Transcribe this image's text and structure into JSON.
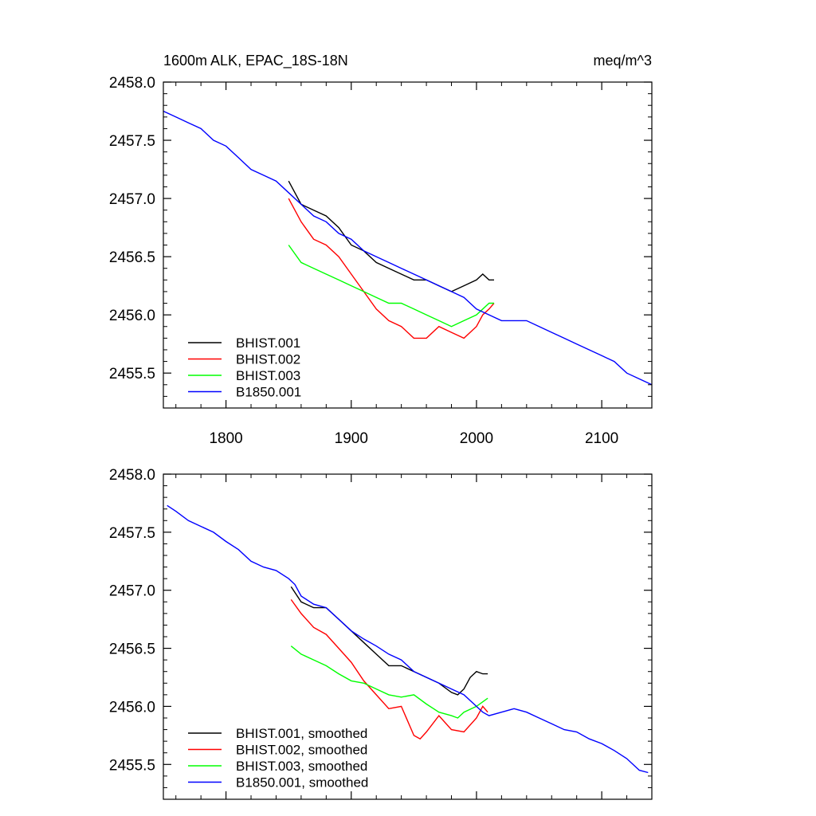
{
  "chart_data": [
    {
      "type": "line",
      "title": "1600m ALK, EPAC_18S-18N",
      "title_right": "meq/m^3",
      "xlim": [
        1750,
        2140
      ],
      "ylim": [
        2455.2,
        2458.0
      ],
      "xticks": [
        1800,
        1900,
        2000,
        2100
      ],
      "xtick_labels": [
        "1800",
        "1900",
        "2000",
        "2100"
      ],
      "yticks": [
        2455.5,
        2456.0,
        2456.5,
        2457.0,
        2457.5,
        2458.0
      ],
      "ytick_labels": [
        "2455.5",
        "2456.0",
        "2456.5",
        "2457.0",
        "2457.5",
        "2458.0"
      ],
      "legend_position": "bottom-left",
      "series": [
        {
          "name": "BHIST.001",
          "color": "#000000",
          "x": [
            1850,
            1860,
            1870,
            1880,
            1890,
            1900,
            1910,
            1920,
            1930,
            1940,
            1950,
            1960,
            1970,
            1980,
            1990,
            2000,
            2005,
            2010,
            2014
          ],
          "y": [
            2457.15,
            2456.95,
            2456.9,
            2456.85,
            2456.75,
            2456.6,
            2456.55,
            2456.45,
            2456.4,
            2456.35,
            2456.3,
            2456.3,
            2456.25,
            2456.2,
            2456.25,
            2456.3,
            2456.35,
            2456.3,
            2456.3
          ]
        },
        {
          "name": "BHIST.002",
          "color": "#ff0000",
          "x": [
            1850,
            1860,
            1870,
            1880,
            1890,
            1900,
            1910,
            1920,
            1930,
            1940,
            1950,
            1960,
            1970,
            1980,
            1990,
            2000,
            2005,
            2010,
            2014
          ],
          "y": [
            2457.0,
            2456.8,
            2456.65,
            2456.6,
            2456.5,
            2456.35,
            2456.2,
            2456.05,
            2455.95,
            2455.9,
            2455.8,
            2455.8,
            2455.9,
            2455.85,
            2455.8,
            2455.9,
            2456.0,
            2456.05,
            2456.1
          ]
        },
        {
          "name": "BHIST.003",
          "color": "#00ff00",
          "x": [
            1850,
            1860,
            1870,
            1880,
            1890,
            1900,
            1910,
            1920,
            1930,
            1940,
            1950,
            1960,
            1970,
            1980,
            1990,
            2000,
            2005,
            2010,
            2014
          ],
          "y": [
            2456.6,
            2456.45,
            2456.4,
            2456.35,
            2456.3,
            2456.25,
            2456.2,
            2456.15,
            2456.1,
            2456.1,
            2456.05,
            2456.0,
            2455.95,
            2455.9,
            2455.95,
            2456.0,
            2456.05,
            2456.1,
            2456.1
          ]
        },
        {
          "name": "B1850.001",
          "color": "#0000ff",
          "x": [
            1750,
            1760,
            1770,
            1780,
            1790,
            1800,
            1810,
            1820,
            1830,
            1840,
            1850,
            1860,
            1870,
            1880,
            1890,
            1900,
            1910,
            1920,
            1930,
            1940,
            1950,
            1960,
            1970,
            1980,
            1990,
            2000,
            2010,
            2020,
            2030,
            2040,
            2050,
            2060,
            2070,
            2080,
            2090,
            2100,
            2110,
            2120,
            2130,
            2140
          ],
          "y": [
            2457.75,
            2457.7,
            2457.65,
            2457.6,
            2457.5,
            2457.45,
            2457.35,
            2457.25,
            2457.2,
            2457.15,
            2457.05,
            2456.95,
            2456.85,
            2456.8,
            2456.7,
            2456.65,
            2456.55,
            2456.5,
            2456.45,
            2456.4,
            2456.35,
            2456.3,
            2456.25,
            2456.2,
            2456.15,
            2456.05,
            2456.0,
            2455.95,
            2455.95,
            2455.95,
            2455.9,
            2455.85,
            2455.8,
            2455.75,
            2455.7,
            2455.65,
            2455.6,
            2455.5,
            2455.45,
            2455.4
          ]
        }
      ]
    },
    {
      "type": "line",
      "title": "",
      "xlim": [
        1750,
        2140
      ],
      "ylim": [
        2455.2,
        2458.0
      ],
      "xticks": [
        1800,
        1900,
        2000,
        2100
      ],
      "xtick_labels": [
        "",
        "",
        "",
        ""
      ],
      "yticks": [
        2455.5,
        2456.0,
        2456.5,
        2457.0,
        2457.5,
        2458.0
      ],
      "ytick_labels": [
        "2455.5",
        "2456.0",
        "2456.5",
        "2457.0",
        "2457.5",
        "2458.0"
      ],
      "legend_position": "bottom-left",
      "series": [
        {
          "name": "BHIST.001, smoothed",
          "color": "#000000",
          "x": [
            1852,
            1860,
            1870,
            1880,
            1890,
            1900,
            1910,
            1920,
            1930,
            1940,
            1950,
            1960,
            1970,
            1980,
            1985,
            1990,
            1995,
            2000,
            2005,
            2009
          ],
          "y": [
            2457.03,
            2456.9,
            2456.85,
            2456.85,
            2456.75,
            2456.65,
            2456.55,
            2456.45,
            2456.35,
            2456.35,
            2456.3,
            2456.25,
            2456.2,
            2456.12,
            2456.1,
            2456.15,
            2456.25,
            2456.3,
            2456.28,
            2456.28
          ]
        },
        {
          "name": "BHIST.002, smoothed",
          "color": "#ff0000",
          "x": [
            1852,
            1860,
            1870,
            1880,
            1890,
            1900,
            1910,
            1920,
            1930,
            1940,
            1950,
            1955,
            1960,
            1970,
            1980,
            1990,
            2000,
            2005,
            2009
          ],
          "y": [
            2456.92,
            2456.8,
            2456.68,
            2456.62,
            2456.5,
            2456.38,
            2456.22,
            2456.1,
            2455.98,
            2456.0,
            2455.75,
            2455.72,
            2455.78,
            2455.92,
            2455.8,
            2455.78,
            2455.9,
            2456.0,
            2455.95
          ]
        },
        {
          "name": "BHIST.003, smoothed",
          "color": "#00ff00",
          "x": [
            1852,
            1860,
            1870,
            1880,
            1890,
            1900,
            1910,
            1920,
            1930,
            1940,
            1950,
            1960,
            1970,
            1980,
            1985,
            1990,
            2000,
            2009
          ],
          "y": [
            2456.52,
            2456.45,
            2456.4,
            2456.35,
            2456.28,
            2456.22,
            2456.2,
            2456.15,
            2456.1,
            2456.08,
            2456.1,
            2456.02,
            2455.95,
            2455.92,
            2455.9,
            2455.95,
            2456.0,
            2456.07
          ]
        },
        {
          "name": "B1850.001, smoothed",
          "color": "#0000ff",
          "x": [
            1753,
            1760,
            1770,
            1780,
            1790,
            1800,
            1810,
            1820,
            1830,
            1840,
            1850,
            1855,
            1860,
            1870,
            1880,
            1890,
            1900,
            1910,
            1920,
            1930,
            1940,
            1950,
            1960,
            1970,
            1980,
            1990,
            2000,
            2005,
            2010,
            2020,
            2030,
            2040,
            2050,
            2060,
            2070,
            2080,
            2090,
            2100,
            2110,
            2120,
            2130,
            2137
          ],
          "y": [
            2457.73,
            2457.68,
            2457.6,
            2457.55,
            2457.5,
            2457.42,
            2457.35,
            2457.25,
            2457.2,
            2457.17,
            2457.1,
            2457.05,
            2456.95,
            2456.88,
            2456.85,
            2456.75,
            2456.65,
            2456.58,
            2456.52,
            2456.45,
            2456.4,
            2456.3,
            2456.25,
            2456.2,
            2456.15,
            2456.1,
            2456.0,
            2455.95,
            2455.92,
            2455.95,
            2455.98,
            2455.95,
            2455.9,
            2455.85,
            2455.8,
            2455.78,
            2455.72,
            2455.68,
            2455.62,
            2455.55,
            2455.45,
            2455.43
          ]
        }
      ]
    }
  ]
}
